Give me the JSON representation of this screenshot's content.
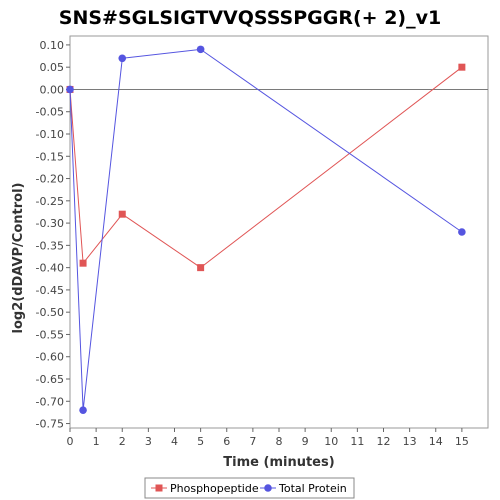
{
  "chart_data": {
    "type": "line",
    "title": "SNS#SGLSIGTVVQSSSPGGR(+ 2)_v1",
    "xlabel": "Time (minutes)",
    "ylabel": "log2(dDAVP/Control)",
    "xlim": [
      0,
      16
    ],
    "ylim": [
      -0.76,
      0.12
    ],
    "x_ticks": [
      0,
      1,
      2,
      3,
      4,
      5,
      6,
      7,
      8,
      9,
      10,
      11,
      12,
      13,
      14,
      15
    ],
    "y_ticks": [
      0.1,
      0.05,
      0.0,
      -0.05,
      -0.1,
      -0.15,
      -0.2,
      -0.25,
      -0.3,
      -0.35,
      -0.4,
      -0.45,
      -0.5,
      -0.55,
      -0.6,
      -0.65,
      -0.7,
      -0.75
    ],
    "y_tick_labels": [
      "0.10",
      "0.05",
      "0.00",
      "-0.05",
      "-0.10",
      "-0.15",
      "-0.20",
      "-0.25",
      "-0.30",
      "-0.35",
      "-0.40",
      "-0.45",
      "-0.50",
      "-0.55",
      "-0.60",
      "-0.65",
      "-0.70",
      "-0.75"
    ],
    "grid": false,
    "zero_line": true,
    "legend_position": "bottom",
    "series": [
      {
        "name": "Phosphopeptide",
        "color": "#e05555",
        "marker": "square",
        "x": [
          0,
          0.5,
          2,
          5,
          15
        ],
        "y": [
          0.0,
          -0.39,
          -0.28,
          -0.4,
          0.05
        ]
      },
      {
        "name": "Total Protein",
        "color": "#5555e0",
        "marker": "circle",
        "x": [
          0,
          0.5,
          2,
          5,
          15
        ],
        "y": [
          0.0,
          -0.72,
          0.07,
          0.09,
          -0.32
        ]
      }
    ]
  }
}
